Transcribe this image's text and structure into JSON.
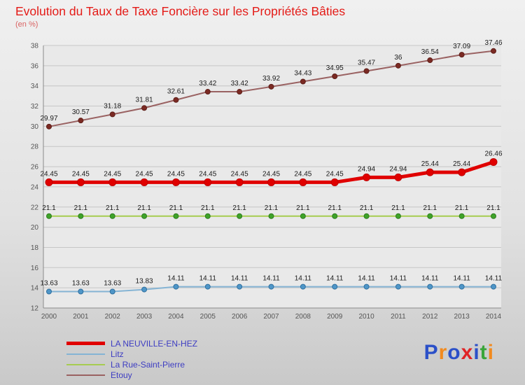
{
  "header": {
    "title": "Evolution du Taux de Taxe Foncière sur les Propriétés Bâties",
    "subtitle": "(en %)",
    "title_color": "#e41b17",
    "subtitle_color": "#d96262"
  },
  "chart_data": {
    "type": "line",
    "title": "Evolution du Taux de Taxe Foncière sur les Propriétés Bâties",
    "subtitle": "(en %)",
    "xlabel": "",
    "ylabel": "",
    "x": [
      2000,
      2001,
      2002,
      2003,
      2004,
      2005,
      2006,
      2007,
      2008,
      2009,
      2010,
      2011,
      2012,
      2013,
      2014
    ],
    "ylim": [
      12,
      38
    ],
    "ytick_step": 2,
    "grid": "horizontal",
    "legend_position": "bottom-left",
    "series": [
      {
        "name": "LA NEUVILLE-EN-HEZ",
        "line_color": "#e00000",
        "marker_fill": "#e00000",
        "marker_stroke": "#c00000",
        "line_width": 5,
        "marker_radius": 5,
        "values": [
          24.45,
          24.45,
          24.45,
          24.45,
          24.45,
          24.45,
          24.45,
          24.45,
          24.45,
          24.45,
          24.94,
          24.94,
          25.44,
          25.44,
          26.46
        ]
      },
      {
        "name": "Litz",
        "line_color": "#85b4d4",
        "marker_fill": "#4f96c8",
        "marker_stroke": "#2f6f9e",
        "line_width": 2,
        "marker_radius": 3.5,
        "values": [
          13.63,
          13.63,
          13.63,
          13.83,
          14.11,
          14.11,
          14.11,
          14.11,
          14.11,
          14.11,
          14.11,
          14.11,
          14.11,
          14.11,
          14.11
        ]
      },
      {
        "name": "La Rue-Saint-Pierre",
        "line_color": "#a6cc51",
        "marker_fill": "#3fa32a",
        "marker_stroke": "#2e7d1e",
        "line_width": 2,
        "marker_radius": 3.5,
        "values": [
          21.1,
          21.1,
          21.1,
          21.1,
          21.1,
          21.1,
          21.1,
          21.1,
          21.1,
          21.1,
          21.1,
          21.1,
          21.1,
          21.1,
          21.1
        ]
      },
      {
        "name": "Etouy",
        "line_color": "#9a6262",
        "marker_fill": "#7b2a23",
        "marker_stroke": "#5f1f1a",
        "line_width": 2,
        "marker_radius": 3.5,
        "values": [
          29.97,
          30.57,
          31.18,
          31.81,
          32.61,
          33.42,
          33.42,
          33.92,
          34.43,
          34.95,
          35.47,
          36,
          36.54,
          37.09,
          37.46
        ]
      }
    ]
  },
  "legend": {
    "label_color": "#3d3dc2"
  },
  "logo": {
    "letters": [
      {
        "ch": "P",
        "color": "#2b50c8"
      },
      {
        "ch": "r",
        "color": "#f28a1e"
      },
      {
        "ch": "o",
        "color": "#2b50c8"
      },
      {
        "ch": "x",
        "color": "#e02325"
      },
      {
        "ch": "i",
        "color": "#2b50c8"
      },
      {
        "ch": "t",
        "color": "#3aa53a"
      },
      {
        "ch": "i",
        "color": "#f28a1e"
      }
    ]
  }
}
